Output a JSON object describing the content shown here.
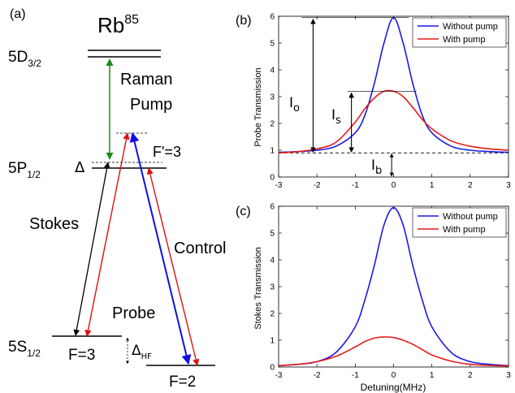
{
  "panel_a": {
    "label": "(a)",
    "title": "Rb",
    "title_sup": "85",
    "levels": {
      "d32": {
        "main": "5D",
        "sub": "3/2"
      },
      "p12": {
        "main": "5P",
        "sub": "1/2"
      },
      "s12": {
        "main": "5S",
        "sub": "1/2"
      },
      "f3": "F=3",
      "f2": "F=2",
      "fp3": "F'=3"
    },
    "labels": {
      "raman": "Raman",
      "pump": "Pump",
      "stokes": "Stokes",
      "probe": "Probe",
      "control": "Control",
      "delta": "Δ",
      "delta_hf_main": "Δ",
      "delta_hf_sub": "HF"
    },
    "colors": {
      "raman": "#1a8a1a",
      "stokes": "#000000",
      "probe": "#e01010",
      "control": "#1010e0"
    }
  },
  "chart_data": [
    {
      "type": "line",
      "panel_label": "(b)",
      "xlabel": "",
      "ylabel": "Probe Transmission",
      "xlim": [
        -3,
        3
      ],
      "ylim": [
        0,
        6
      ],
      "xticks": [
        "-3",
        "-2",
        "-1",
        "0",
        "1",
        "2",
        "3"
      ],
      "yticks": [
        "0",
        "1",
        "2",
        "3",
        "4",
        "5",
        "6"
      ],
      "legend": "top-right",
      "grid": false,
      "baseline": 0.9,
      "series": [
        {
          "name": "Without pump",
          "color": "#1a1ae6",
          "x": [
            -3,
            -2.5,
            -2,
            -1.5,
            -1,
            -0.75,
            -0.5,
            -0.25,
            0,
            0.25,
            0.5,
            0.75,
            1,
            1.5,
            2,
            2.5,
            3
          ],
          "y": [
            0.92,
            0.95,
            1.0,
            1.15,
            1.65,
            2.3,
            3.5,
            5.0,
            5.95,
            5.0,
            3.5,
            2.3,
            1.65,
            1.15,
            1.0,
            0.95,
            0.92
          ]
        },
        {
          "name": "With pump",
          "color": "#e61a1a",
          "x": [
            -3,
            -2.5,
            -2,
            -1.5,
            -1,
            -0.75,
            -0.5,
            -0.25,
            0,
            0.25,
            0.5,
            0.75,
            1,
            1.5,
            2,
            2.5,
            3
          ],
          "y": [
            0.9,
            0.95,
            1.05,
            1.3,
            2.05,
            2.55,
            2.95,
            3.2,
            3.2,
            3.0,
            2.6,
            2.15,
            1.8,
            1.35,
            1.15,
            1.05,
            1.0
          ]
        }
      ],
      "annotations": {
        "io_main": "I",
        "io_sub": "o",
        "is_main": "I",
        "is_sub": "s",
        "ib_main": "I",
        "ib_sub": "b"
      }
    },
    {
      "type": "line",
      "panel_label": "(c)",
      "xlabel": "Detuning(MHz)",
      "ylabel": "Stokes Transmission",
      "xlim": [
        -3,
        3
      ],
      "ylim": [
        0,
        6
      ],
      "xticks": [
        "-3",
        "-2",
        "-1",
        "0",
        "1",
        "2",
        "3"
      ],
      "yticks": [
        "0",
        "1",
        "2",
        "3",
        "4",
        "5",
        "6"
      ],
      "legend": "top-right",
      "grid": false,
      "series": [
        {
          "name": "Without pump",
          "color": "#1a1ae6",
          "x": [
            -3,
            -2.5,
            -2,
            -1.5,
            -1,
            -0.75,
            -0.5,
            -0.25,
            0,
            0.25,
            0.5,
            0.75,
            1,
            1.5,
            2,
            2.5,
            3
          ],
          "y": [
            0.05,
            0.1,
            0.2,
            0.55,
            1.5,
            2.5,
            3.8,
            5.3,
            5.95,
            5.3,
            3.8,
            2.5,
            1.5,
            0.55,
            0.2,
            0.1,
            0.05
          ]
        },
        {
          "name": "With pump",
          "color": "#e61a1a",
          "x": [
            -3,
            -2.5,
            -2,
            -1.5,
            -1,
            -0.75,
            -0.5,
            -0.25,
            0,
            0.25,
            0.5,
            0.75,
            1,
            1.5,
            2,
            2.5,
            3
          ],
          "y": [
            0.05,
            0.1,
            0.2,
            0.4,
            0.75,
            0.95,
            1.08,
            1.12,
            1.1,
            1.0,
            0.85,
            0.65,
            0.45,
            0.22,
            0.1,
            0.06,
            0.04
          ]
        }
      ]
    }
  ]
}
